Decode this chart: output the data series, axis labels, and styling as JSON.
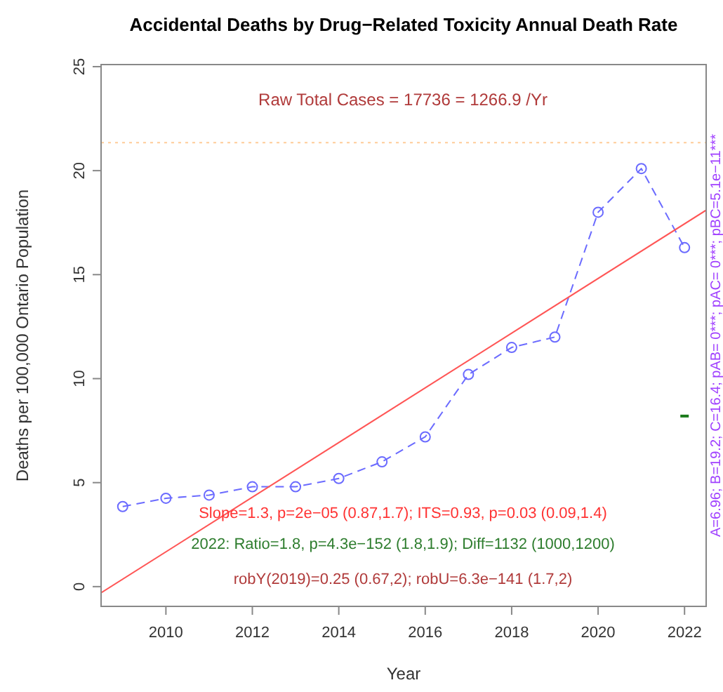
{
  "chart_data": {
    "type": "line",
    "title": "Accidental Deaths by Drug−Related Toxicity Annual Death Rate",
    "xlabel": "Year",
    "ylabel": "Deaths per 100,000 Ontario Population",
    "xlim": [
      2008.5,
      2022.5
    ],
    "xticks": [
      2010,
      2012,
      2014,
      2016,
      2018,
      2020,
      2022
    ],
    "ylim": [
      -0.95,
      25.1
    ],
    "yticks": [
      0,
      5,
      10,
      15,
      20,
      25
    ],
    "grid": false,
    "series": [
      {
        "color": "#6b6bff",
        "marker": "circle",
        "line_style": "dashed",
        "x": [
          2009,
          2010,
          2011,
          2012,
          2013,
          2014,
          2015,
          2016,
          2017,
          2018,
          2019,
          2020,
          2021,
          2022
        ],
        "values": [
          3.85,
          4.25,
          4.4,
          4.8,
          4.8,
          5.2,
          6.0,
          7.2,
          10.2,
          11.5,
          12.0,
          18.0,
          20.1,
          16.3
        ]
      },
      {
        "color": "#ff5555",
        "marker": "none",
        "line_style": "solid",
        "x": [
          2008.5,
          2022.5
        ],
        "values": [
          -0.3,
          18.1
        ]
      },
      {
        "type": "scatter",
        "color": "#1a7a1a",
        "marker": "square",
        "x": [
          2022
        ],
        "values": [
          8.2
        ]
      }
    ],
    "ref_lines": [
      {
        "axis": "y",
        "value": 21.35,
        "color": "#ffcc99",
        "line_style": "dotted"
      }
    ],
    "annotations": [
      "Raw Total Cases = 17736 = 1266.9 /Yr",
      "Slope=1.3, p=2e−05 (0.87,1.7);  ITS=0.93, p=0.03 (0.09,1.4)",
      "2022:  Ratio=1.8, p=4.3e−152 (1.8,1.9);  Diff=1132 (1000,1200)",
      "robY(2019)=0.25 (0.67,2); robU=6.3e−141 (1.7,2)",
      "A=6.96; B=19.2; C=16.4; pAB= 0***; pAC= 0***; pBC=5.1e−11***"
    ]
  }
}
